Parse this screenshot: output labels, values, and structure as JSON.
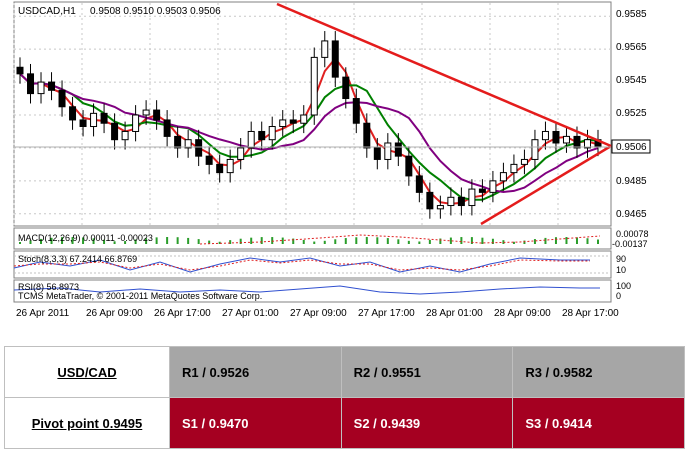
{
  "chart_header": {
    "symbol": "USDCAD,H1",
    "ohlc": "0.9508 0.9510 0.9503 0.9506"
  },
  "chart_data": {
    "type": "candlestick",
    "price_ticks": [
      "0.9585",
      "0.9565",
      "0.9545",
      "0.9525",
      "0.9485",
      "0.9465"
    ],
    "current_price": "0.9506",
    "x_tick_labels": [
      "26 Apr 2011",
      "26 Apr 09:00",
      "26 Apr 17:00",
      "27 Apr 01:00",
      "27 Apr 09:00",
      "27 Apr 17:00",
      "28 Apr 01:00",
      "28 Apr 09:00",
      "28 Apr 17:00"
    ],
    "candles_close": [
      0.955,
      0.9538,
      0.9545,
      0.954,
      0.953,
      0.9522,
      0.9518,
      0.9526,
      0.952,
      0.951,
      0.9515,
      0.9525,
      0.9528,
      0.9522,
      0.9512,
      0.9505,
      0.951,
      0.95,
      0.9495,
      0.949,
      0.9498,
      0.9505,
      0.9515,
      0.951,
      0.9518,
      0.9522,
      0.952,
      0.9525,
      0.956,
      0.957,
      0.9548,
      0.9535,
      0.952,
      0.9505,
      0.9498,
      0.9508,
      0.95,
      0.9488,
      0.9478,
      0.9468,
      0.947,
      0.9475,
      0.947,
      0.948,
      0.9478,
      0.9485,
      0.949,
      0.9495,
      0.9498,
      0.951,
      0.9515,
      0.9508,
      0.9512,
      0.9505,
      0.951,
      0.9506
    ],
    "ma_fast_color": "#e02020",
    "ma_mid_color": "#008000",
    "ma_slow_color": "#800080",
    "trendline_color": "#e41c1c",
    "indicators": {
      "macd_label": "MACD(12,26,9) 0.00011 -0.00023",
      "macd_scale_top": "0.00078",
      "macd_scale_bottom": "-0.00137",
      "stoch_label": "Stoch(8,3,3) 67.2414 66.8769",
      "stoch_scale": [
        "90",
        "10"
      ],
      "rsi_label": "RSI(8) 56.8973",
      "rsi_scale": [
        "100",
        "0"
      ],
      "copyright": "TCMS MetaTrader, © 2001-2011 MetaQuotes Software Corp."
    }
  },
  "pivot_table": {
    "pair": "USD/CAD",
    "pivot_point": "Pivot point 0.9495",
    "r1": "R1 / 0.9526",
    "r2": "R2 / 0.9551",
    "r3": "R3 / 0.9582",
    "s1": "S1 / 0.9470",
    "s2": "S2 / 0.9439",
    "s3": "S3 / 0.9414",
    "r_color": "#a6a6a6",
    "s_color": "#a50021"
  }
}
